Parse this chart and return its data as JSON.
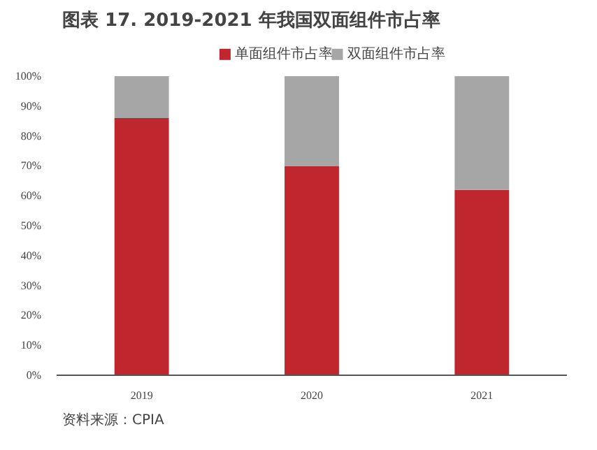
{
  "chart_data": {
    "type": "bar",
    "title": "图表 17. 2019-2021 年我国双面组件市占率",
    "categories": [
      "2019",
      "2020",
      "2021"
    ],
    "stacked": true,
    "series": [
      {
        "name": "单面组件市占率",
        "color": "#c0262d",
        "values": [
          86,
          70,
          62
        ]
      },
      {
        "name": "双面组件市占率",
        "color": "#a6a6a6",
        "values": [
          14,
          30,
          38
        ]
      }
    ],
    "ylim": [
      0,
      100
    ],
    "yticks": [
      {
        "value": 0,
        "label": "0%"
      },
      {
        "value": 10,
        "label": "10%"
      },
      {
        "value": 20,
        "label": "20%"
      },
      {
        "value": 30,
        "label": "30%"
      },
      {
        "value": 40,
        "label": "40%"
      },
      {
        "value": 50,
        "label": "50%"
      },
      {
        "value": 60,
        "label": "60%"
      },
      {
        "value": 70,
        "label": "70%"
      },
      {
        "value": 80,
        "label": "80%"
      },
      {
        "value": 90,
        "label": "90%"
      },
      {
        "value": 100,
        "label": "100%"
      }
    ],
    "grid": false,
    "legend": "top",
    "annotations": [
      "资料来源：CPIA"
    ]
  }
}
